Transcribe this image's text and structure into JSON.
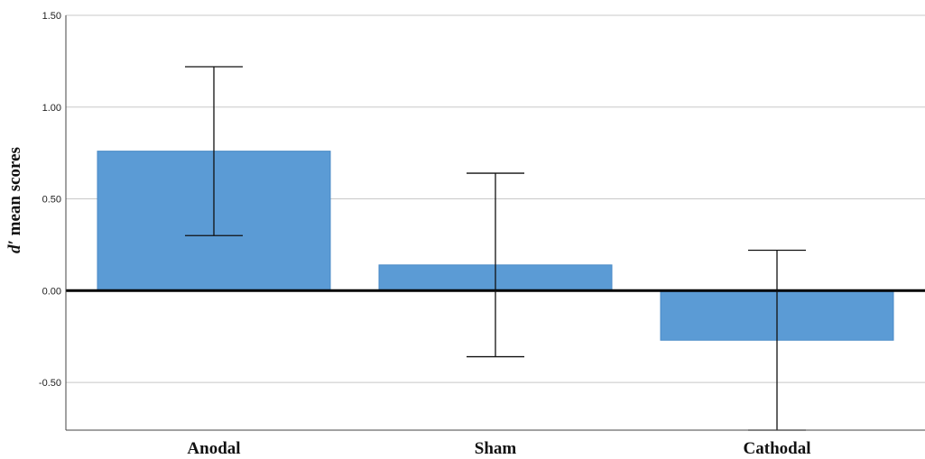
{
  "chart_data": {
    "type": "bar",
    "categories": [
      "Anodal",
      "Sham",
      "Cathodal"
    ],
    "values": [
      0.76,
      0.14,
      -0.27
    ],
    "error_bars": [
      {
        "low": 0.3,
        "high": 1.22
      },
      {
        "low": -0.36,
        "high": 0.64
      },
      {
        "low": -0.76,
        "high": 0.22
      }
    ],
    "ylabel_italic": "d′",
    "ylabel": "mean scores",
    "ylim": [
      -0.76,
      1.5
    ],
    "yticks": [
      "1.50",
      "1.00",
      "0.50",
      "0.00",
      "-0.50"
    ],
    "ytick_values": [
      1.5,
      1.0,
      0.5,
      0.0,
      -0.5
    ],
    "grid": true,
    "colors": {
      "bar": "#5b9bd5",
      "bar_border": "#4a8ac6",
      "grid": "#c8c8c8",
      "zero_line": "#000000"
    }
  }
}
